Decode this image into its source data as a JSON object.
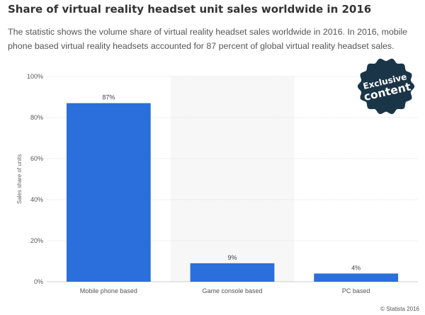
{
  "title": "Share of virtual reality headset unit sales worldwide in 2016",
  "description": "The statistic shows the volume share of virtual reality headset sales worldwide in 2016. In 2016, mobile phone based virtual reality headsets accounted for 87 percent of global virtual reality headset sales.",
  "badge": {
    "line1": "Exclusive",
    "line2": "content",
    "color": "#1b3548"
  },
  "source": "© Statista 2016",
  "chart_data": {
    "type": "bar",
    "categories": [
      "Mobile phone based",
      "Game console based",
      "PC based"
    ],
    "values": [
      87,
      9,
      4
    ],
    "data_labels": [
      "87%",
      "9%",
      "4%"
    ],
    "ylabel": "Sales share of units",
    "ylim": [
      0,
      100
    ],
    "yticks": [
      0,
      20,
      40,
      60,
      80,
      100
    ],
    "ytick_labels": [
      "0%",
      "20%",
      "40%",
      "60%",
      "80%",
      "100%"
    ],
    "grid": true,
    "highlighted_category": "Game console based",
    "bar_color": "#2a6fdb",
    "highlight_color": "#f7f7f7"
  }
}
